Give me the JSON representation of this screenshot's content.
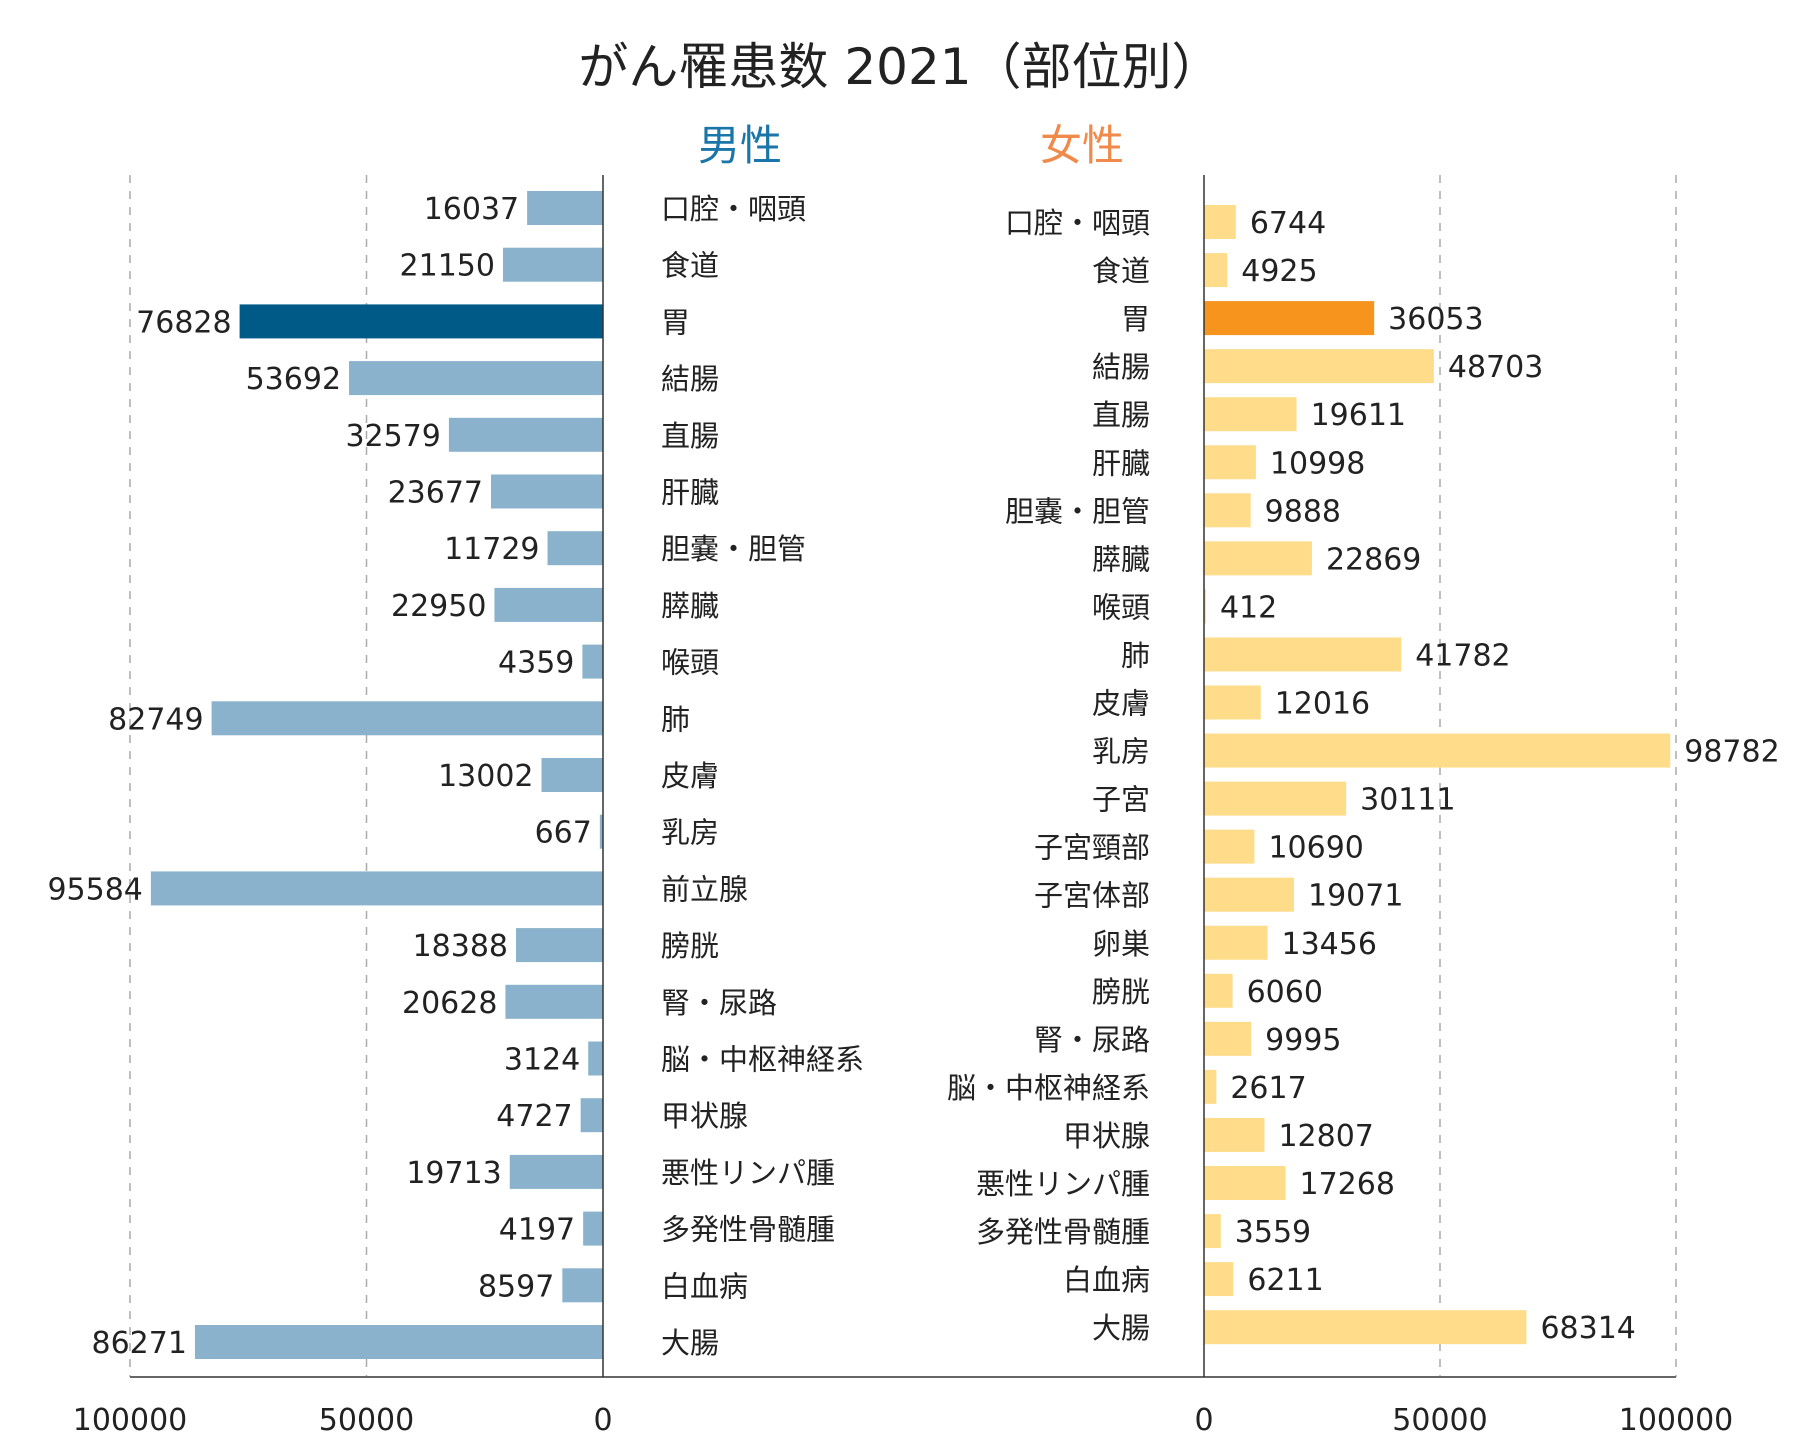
{
  "chart_data": {
    "type": "bar",
    "title": "がん罹患数 2021（部位別）",
    "colors": {
      "male": "#8ab2cc",
      "male_highlight": "#005a87",
      "female": "#fedc8a",
      "female_highlight": "#f7941d",
      "male_label": "#1a75a8",
      "female_label": "#f08a4b"
    },
    "xlim": [
      0,
      100000
    ],
    "ticks": [
      0,
      50000,
      100000
    ],
    "tick_labels": [
      "0",
      "50000",
      "100000"
    ],
    "grid": true,
    "series": [
      {
        "name": "男性",
        "highlight": "胃",
        "categories": [
          "口腔・咽頭",
          "食道",
          "胃",
          "結腸",
          "直腸",
          "肝臓",
          "胆嚢・胆管",
          "膵臓",
          "喉頭",
          "肺",
          "皮膚",
          "乳房",
          "前立腺",
          "膀胱",
          "腎・尿路",
          "脳・中枢神経系",
          "甲状腺",
          "悪性リンパ腫",
          "多発性骨髄腫",
          "白血病",
          "大腸"
        ],
        "values": [
          16037,
          21150,
          76828,
          53692,
          32579,
          23677,
          11729,
          22950,
          4359,
          82749,
          13002,
          667,
          95584,
          18388,
          20628,
          3124,
          4727,
          19713,
          4197,
          8597,
          86271
        ]
      },
      {
        "name": "女性",
        "highlight": "胃",
        "categories": [
          "口腔・咽頭",
          "食道",
          "胃",
          "結腸",
          "直腸",
          "肝臓",
          "胆嚢・胆管",
          "膵臓",
          "喉頭",
          "肺",
          "皮膚",
          "乳房",
          "子宮",
          "子宮頸部",
          "子宮体部",
          "卵巣",
          "膀胱",
          "腎・尿路",
          "脳・中枢神経系",
          "甲状腺",
          "悪性リンパ腫",
          "多発性骨髄腫",
          "白血病",
          "大腸"
        ],
        "values": [
          6744,
          4925,
          36053,
          48703,
          19611,
          10998,
          9888,
          22869,
          412,
          41782,
          12016,
          98782,
          30111,
          10690,
          19071,
          13456,
          6060,
          9995,
          2617,
          12807,
          17268,
          3559,
          6211,
          68314
        ]
      }
    ]
  }
}
